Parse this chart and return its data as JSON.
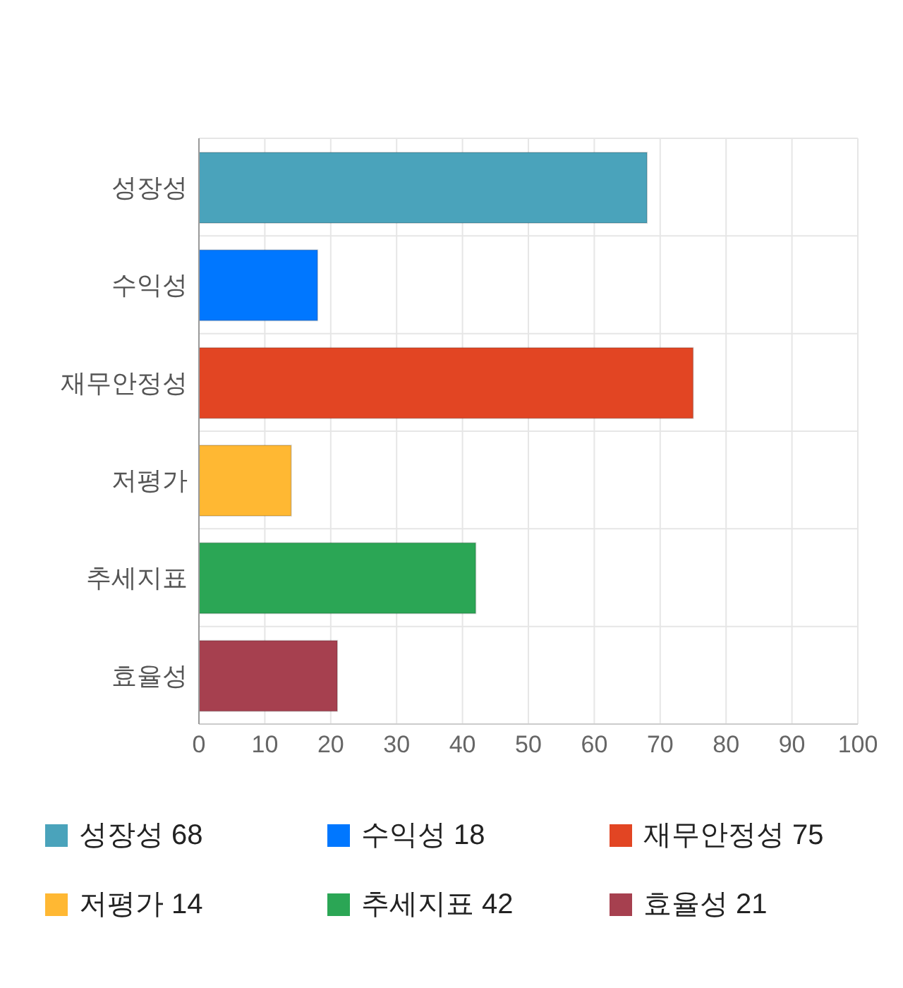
{
  "chart_data": {
    "type": "bar",
    "orientation": "horizontal",
    "stacked": true,
    "categories": [
      "성장성",
      "수익성",
      "재무안정성",
      "저평가",
      "추세지표",
      "효율성"
    ],
    "series": [
      {
        "name": "성장성 68",
        "color": "#4aa3bb",
        "values": [
          68,
          null,
          null,
          null,
          null,
          null
        ]
      },
      {
        "name": "수익성 18",
        "color": "#0077ff",
        "values": [
          null,
          18,
          null,
          null,
          null,
          null
        ]
      },
      {
        "name": "재무안정성 75",
        "color": "#e24523",
        "values": [
          null,
          null,
          75,
          null,
          null,
          null
        ]
      },
      {
        "name": "저평가 14",
        "color": "#ffb833",
        "values": [
          null,
          null,
          null,
          14,
          null,
          null
        ]
      },
      {
        "name": "추세지표 42",
        "color": "#2ba655",
        "values": [
          null,
          null,
          null,
          null,
          42,
          null
        ]
      },
      {
        "name": "효율성 21",
        "color": "#a6404f",
        "values": [
          null,
          null,
          null,
          null,
          null,
          21
        ]
      }
    ],
    "xlim": [
      0,
      100
    ],
    "xticks": [
      0,
      10,
      20,
      30,
      40,
      50,
      60,
      70,
      80,
      90,
      100
    ],
    "grid": true,
    "legend": "bottom"
  }
}
